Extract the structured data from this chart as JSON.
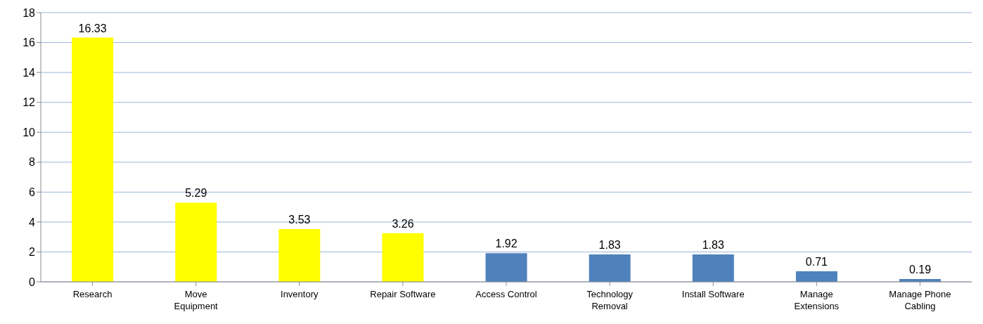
{
  "chart_data": {
    "type": "bar",
    "categories": [
      "Research",
      "Move\nEquipment",
      "Inventory",
      "Repair Software",
      "Access Control",
      "Technology\nRemoval",
      "Install Software",
      "Manage\nExtensions",
      "Manage Phone\nCabling"
    ],
    "values": [
      16.33,
      5.29,
      3.53,
      3.26,
      1.92,
      1.83,
      1.83,
      0.71,
      0.19
    ],
    "colors": [
      "#ffff00",
      "#ffff00",
      "#ffff00",
      "#ffff00",
      "#4f81bd",
      "#4f81bd",
      "#4f81bd",
      "#4f81bd",
      "#4f81bd"
    ],
    "ylim": [
      0,
      18
    ],
    "yticks": [
      0,
      2,
      4,
      6,
      8,
      10,
      12,
      14,
      16,
      18
    ],
    "grid": "y",
    "data_labels": true,
    "legend": false
  }
}
